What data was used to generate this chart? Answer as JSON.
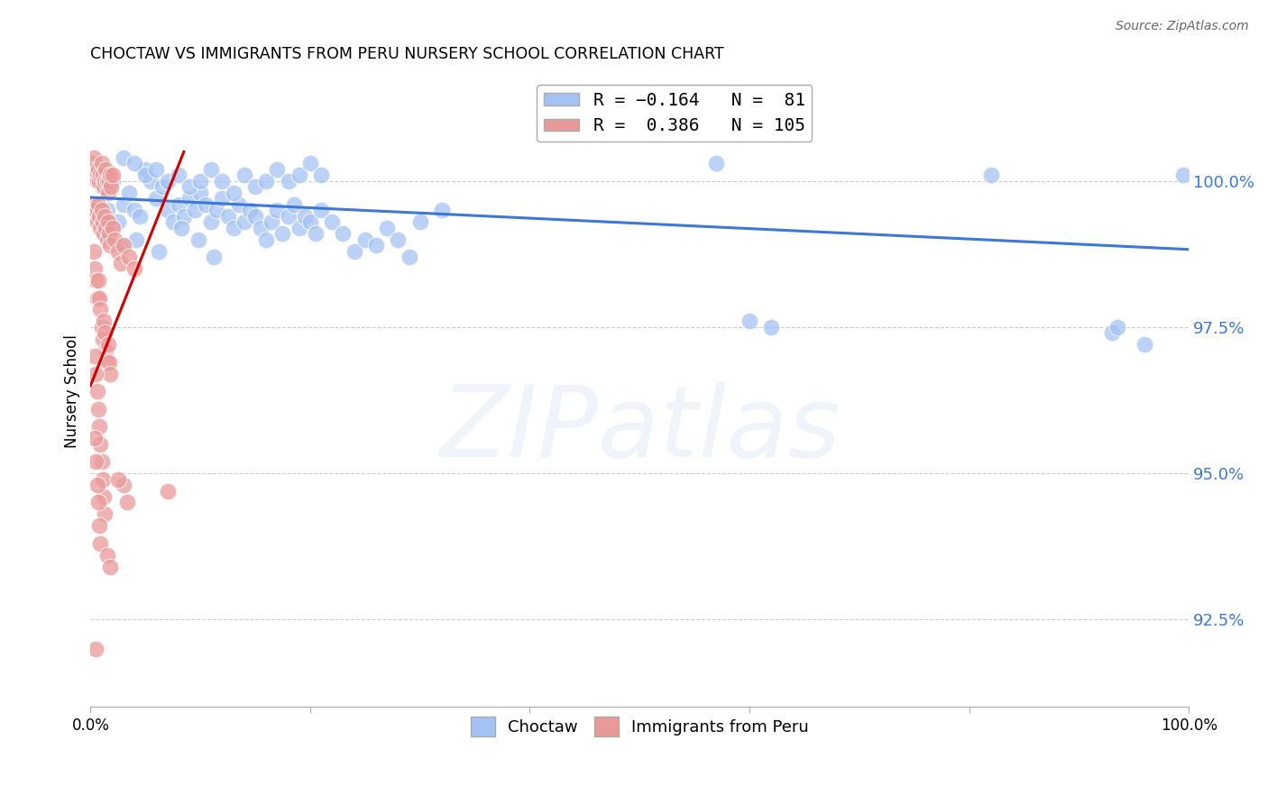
{
  "title": "CHOCTAW VS IMMIGRANTS FROM PERU NURSERY SCHOOL CORRELATION CHART",
  "source": "Source: ZipAtlas.com",
  "ylabel": "Nursery School",
  "ytick_labels": [
    "92.5%",
    "95.0%",
    "97.5%",
    "100.0%"
  ],
  "ytick_values": [
    92.5,
    95.0,
    97.5,
    100.0
  ],
  "xlim": [
    0.0,
    100.0
  ],
  "ylim": [
    91.0,
    101.8
  ],
  "blue_color": "#a4c2f4",
  "pink_color": "#ea9999",
  "blue_line_color": "#3c78d8",
  "pink_line_color": "#cc0000",
  "blue_trend_x": [
    0.0,
    100.0
  ],
  "blue_trend_y": [
    99.72,
    98.83
  ],
  "pink_trend_x": [
    0.0,
    8.5
  ],
  "pink_trend_y": [
    96.5,
    100.5
  ],
  "blue_dots": [
    [
      0.5,
      100.1
    ],
    [
      1.0,
      99.9
    ],
    [
      1.5,
      99.5
    ],
    [
      2.0,
      100.0
    ],
    [
      2.5,
      99.3
    ],
    [
      3.0,
      99.6
    ],
    [
      3.5,
      99.8
    ],
    [
      4.0,
      99.5
    ],
    [
      4.5,
      99.4
    ],
    [
      5.0,
      100.2
    ],
    [
      5.5,
      100.0
    ],
    [
      6.0,
      99.7
    ],
    [
      6.5,
      99.9
    ],
    [
      7.0,
      99.5
    ],
    [
      7.5,
      99.3
    ],
    [
      8.0,
      99.6
    ],
    [
      8.5,
      99.4
    ],
    [
      9.0,
      99.7
    ],
    [
      9.5,
      99.5
    ],
    [
      10.0,
      99.8
    ],
    [
      10.5,
      99.6
    ],
    [
      11.0,
      99.3
    ],
    [
      11.5,
      99.5
    ],
    [
      12.0,
      99.7
    ],
    [
      12.5,
      99.4
    ],
    [
      13.0,
      99.2
    ],
    [
      13.5,
      99.6
    ],
    [
      14.0,
      99.3
    ],
    [
      14.5,
      99.5
    ],
    [
      15.0,
      99.4
    ],
    [
      15.5,
      99.2
    ],
    [
      16.0,
      99.0
    ],
    [
      16.5,
      99.3
    ],
    [
      17.0,
      99.5
    ],
    [
      17.5,
      99.1
    ],
    [
      18.0,
      99.4
    ],
    [
      18.5,
      99.6
    ],
    [
      19.0,
      99.2
    ],
    [
      19.5,
      99.4
    ],
    [
      20.0,
      99.3
    ],
    [
      20.5,
      99.1
    ],
    [
      21.0,
      99.5
    ],
    [
      22.0,
      99.3
    ],
    [
      23.0,
      99.1
    ],
    [
      24.0,
      98.8
    ],
    [
      25.0,
      99.0
    ],
    [
      26.0,
      98.9
    ],
    [
      27.0,
      99.2
    ],
    [
      28.0,
      99.0
    ],
    [
      29.0,
      98.7
    ],
    [
      1.2,
      99.1
    ],
    [
      2.8,
      98.9
    ],
    [
      4.2,
      99.0
    ],
    [
      6.2,
      98.8
    ],
    [
      8.3,
      99.2
    ],
    [
      9.8,
      99.0
    ],
    [
      11.2,
      98.7
    ],
    [
      3.0,
      100.4
    ],
    [
      4.0,
      100.3
    ],
    [
      5.0,
      100.1
    ],
    [
      6.0,
      100.2
    ],
    [
      7.0,
      100.0
    ],
    [
      8.0,
      100.1
    ],
    [
      9.0,
      99.9
    ],
    [
      10.0,
      100.0
    ],
    [
      11.0,
      100.2
    ],
    [
      12.0,
      100.0
    ],
    [
      13.0,
      99.8
    ],
    [
      14.0,
      100.1
    ],
    [
      15.0,
      99.9
    ],
    [
      16.0,
      100.0
    ],
    [
      17.0,
      100.2
    ],
    [
      18.0,
      100.0
    ],
    [
      19.0,
      100.1
    ],
    [
      20.0,
      100.3
    ],
    [
      21.0,
      100.1
    ],
    [
      30.0,
      99.3
    ],
    [
      32.0,
      99.5
    ],
    [
      60.0,
      97.6
    ],
    [
      62.0,
      97.5
    ],
    [
      57.0,
      100.3
    ],
    [
      82.0,
      100.1
    ],
    [
      93.0,
      97.4
    ],
    [
      93.5,
      97.5
    ],
    [
      96.0,
      97.2
    ],
    [
      99.5,
      100.1
    ]
  ],
  "pink_dots": [
    [
      0.2,
      100.3
    ],
    [
      0.3,
      100.4
    ],
    [
      0.4,
      100.2
    ],
    [
      0.5,
      100.1
    ],
    [
      0.6,
      100.0
    ],
    [
      0.7,
      100.2
    ],
    [
      0.8,
      100.0
    ],
    [
      0.9,
      100.1
    ],
    [
      1.0,
      100.3
    ],
    [
      1.1,
      100.1
    ],
    [
      1.2,
      99.9
    ],
    [
      1.3,
      100.0
    ],
    [
      1.4,
      100.2
    ],
    [
      1.5,
      100.0
    ],
    [
      1.6,
      99.8
    ],
    [
      1.7,
      100.0
    ],
    [
      1.8,
      100.1
    ],
    [
      1.9,
      99.9
    ],
    [
      2.0,
      100.1
    ],
    [
      0.3,
      99.6
    ],
    [
      0.4,
      99.4
    ],
    [
      0.5,
      99.5
    ],
    [
      0.6,
      99.3
    ],
    [
      0.7,
      99.6
    ],
    [
      0.8,
      99.4
    ],
    [
      0.9,
      99.2
    ],
    [
      1.0,
      99.5
    ],
    [
      1.1,
      99.3
    ],
    [
      1.2,
      99.1
    ],
    [
      1.3,
      99.4
    ],
    [
      1.4,
      99.2
    ],
    [
      1.5,
      99.0
    ],
    [
      1.6,
      99.3
    ],
    [
      1.7,
      99.1
    ],
    [
      1.8,
      98.9
    ],
    [
      2.0,
      99.2
    ],
    [
      2.2,
      99.0
    ],
    [
      2.5,
      98.8
    ],
    [
      2.8,
      98.6
    ],
    [
      3.0,
      98.9
    ],
    [
      3.5,
      98.7
    ],
    [
      4.0,
      98.5
    ],
    [
      0.3,
      98.8
    ],
    [
      0.4,
      98.5
    ],
    [
      0.5,
      98.3
    ],
    [
      0.6,
      98.0
    ],
    [
      0.7,
      98.3
    ],
    [
      0.8,
      98.0
    ],
    [
      0.9,
      97.8
    ],
    [
      1.0,
      97.5
    ],
    [
      1.1,
      97.3
    ],
    [
      1.2,
      97.6
    ],
    [
      1.3,
      97.4
    ],
    [
      1.4,
      97.1
    ],
    [
      1.5,
      96.9
    ],
    [
      1.6,
      97.2
    ],
    [
      1.7,
      96.9
    ],
    [
      1.8,
      96.7
    ],
    [
      0.4,
      97.0
    ],
    [
      0.5,
      96.7
    ],
    [
      0.6,
      96.4
    ],
    [
      0.7,
      96.1
    ],
    [
      0.8,
      95.8
    ],
    [
      0.9,
      95.5
    ],
    [
      1.0,
      95.2
    ],
    [
      1.1,
      94.9
    ],
    [
      1.2,
      94.6
    ],
    [
      1.3,
      94.3
    ],
    [
      0.4,
      95.6
    ],
    [
      0.5,
      95.2
    ],
    [
      0.6,
      94.8
    ],
    [
      0.7,
      94.5
    ],
    [
      0.8,
      94.1
    ],
    [
      0.9,
      93.8
    ],
    [
      3.0,
      94.8
    ],
    [
      3.3,
      94.5
    ],
    [
      7.0,
      94.7
    ],
    [
      1.5,
      93.6
    ],
    [
      1.8,
      93.4
    ],
    [
      2.5,
      94.9
    ],
    [
      0.5,
      92.0
    ]
  ]
}
